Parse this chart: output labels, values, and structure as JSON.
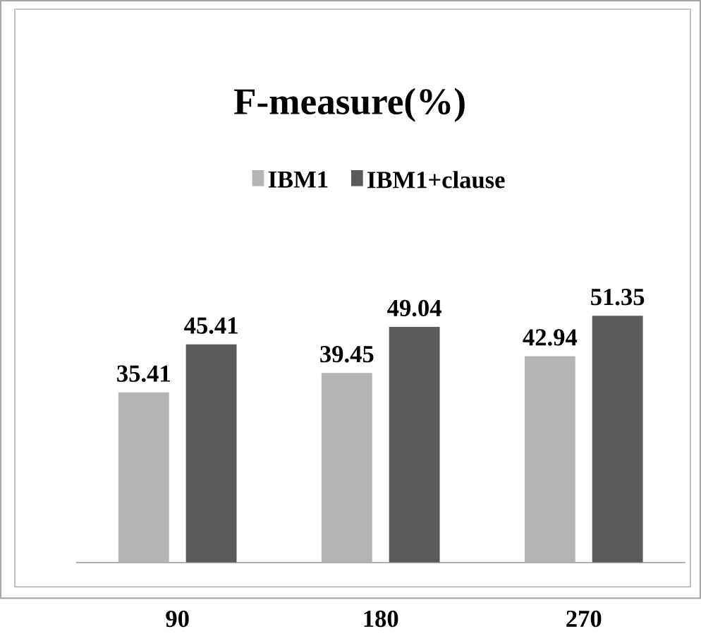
{
  "chart_data": {
    "type": "bar",
    "title": "F-measure(%)",
    "categories": [
      "90",
      "180",
      "270"
    ],
    "series": [
      {
        "name": "IBM1",
        "color": "#b4b4b4",
        "values": [
          35.41,
          39.45,
          42.94
        ]
      },
      {
        "name": "IBM1+clause",
        "color": "#5a5a5a",
        "values": [
          45.41,
          49.04,
          51.35
        ]
      }
    ],
    "data_labels": true,
    "legend": "top"
  }
}
